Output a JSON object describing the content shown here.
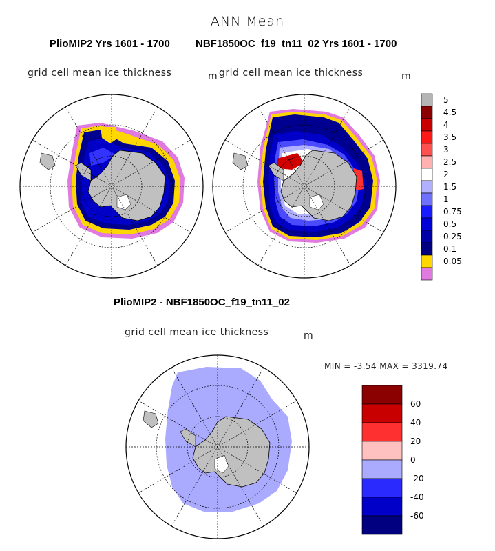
{
  "figure": {
    "title": "ANN Mean",
    "left_panel_title": "PlioMIP2  Yrs 1601 - 1700",
    "right_panel_title": "NBF1850OC_f19_tn11_02  Yrs 1601 - 1700",
    "diff_title": "PlioMIP2 - NBF1850OC_f19_tn11_02",
    "field_label": "grid cell mean ice thickness",
    "unit": "m",
    "min_max_text": "MIN =   -3.54  MAX = 3319.74"
  },
  "colorbar_top": {
    "labels": [
      "5",
      "4.5",
      "4",
      "3.5",
      "3",
      "2.5",
      "2",
      "1.5",
      "1",
      "0.75",
      "0.5",
      "0.25",
      "0.1",
      "0.05"
    ],
    "colors": [
      "#b5b5b5",
      "#8b0000",
      "#c80000",
      "#ff1a1a",
      "#ff5050",
      "#ffb0b0",
      "#ffffff",
      "#b0b0ff",
      "#7070ff",
      "#1a1aff",
      "#0000d8",
      "#0000a8",
      "#000080",
      "#ffd700",
      "#e07ae0"
    ]
  },
  "colorbar_diff": {
    "labels": [
      "60",
      "40",
      "20",
      "0",
      "-20",
      "-40",
      "-60"
    ],
    "colors": [
      "#8b0000",
      "#c80000",
      "#ff3030",
      "#ffc0c0",
      "#aaaaff",
      "#2a2aff",
      "#0000c8",
      "#000080"
    ]
  }
}
